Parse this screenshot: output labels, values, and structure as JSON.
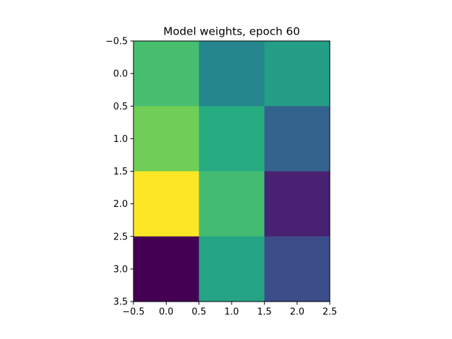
{
  "chart_data": {
    "type": "heatmap",
    "title": "Model weights, epoch 60",
    "xlabel": "",
    "ylabel": "",
    "xlim": [
      -0.5,
      2.5
    ],
    "ylim": [
      3.5,
      -0.5
    ],
    "x_ticks": [
      -0.5,
      0.0,
      0.5,
      1.0,
      1.5,
      2.0,
      2.5
    ],
    "x_tick_labels": [
      "−0.5",
      "0.0",
      "0.5",
      "1.0",
      "1.5",
      "2.0",
      "2.5"
    ],
    "y_ticks": [
      -0.5,
      0.0,
      0.5,
      1.0,
      1.5,
      2.0,
      2.5,
      3.0,
      3.5
    ],
    "y_tick_labels": [
      "−0.5",
      "0.0",
      "0.5",
      "1.0",
      "1.5",
      "2.0",
      "2.5",
      "3.0",
      "3.5"
    ],
    "colormap": "viridis",
    "grid": false,
    "rows": 4,
    "cols": 3,
    "values": [
      [
        0.7,
        0.46,
        0.56
      ],
      [
        0.78,
        0.62,
        0.32
      ],
      [
        1.0,
        0.69,
        0.12
      ],
      [
        0.0,
        0.58,
        0.24
      ]
    ]
  }
}
